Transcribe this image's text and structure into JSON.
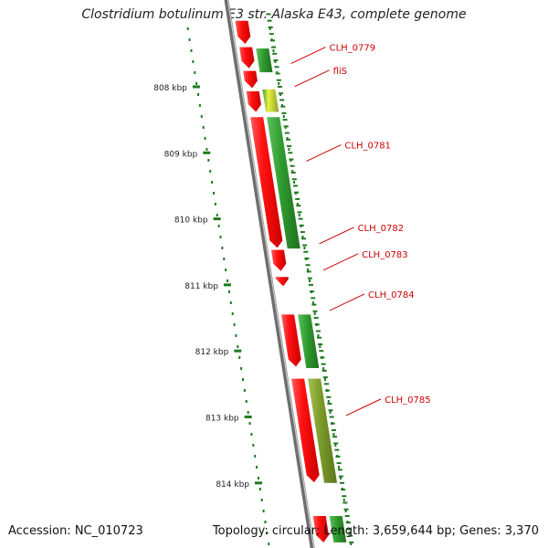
{
  "title": "Clostridium botulinum E3 str. Alaska E43, complete genome",
  "accession_text": "Accession: NC_010723",
  "stats_text": "Topology: circular; Length: 3,659,644 bp; Genes: 3,370",
  "colors": {
    "backbone": "#8c8c8c",
    "gene_forward": "#ff1a1a",
    "cds_green": "#2e9a2e",
    "cds_olive": "#7a9a2a",
    "tick": "#1e7a1e",
    "label": "#cc0000"
  },
  "scale": {
    "unit": "kbp",
    "ticks": [
      {
        "value": 808,
        "label": "808 kbp"
      },
      {
        "value": 809,
        "label": "809 kbp"
      },
      {
        "value": 810,
        "label": "810 kbp"
      },
      {
        "value": 811,
        "label": "811 kbp"
      },
      {
        "value": 812,
        "label": "812 kbp"
      },
      {
        "value": 813,
        "label": "813 kbp"
      },
      {
        "value": 814,
        "label": "814 kbp"
      }
    ]
  },
  "genes": [
    {
      "name": "",
      "start": 807.0,
      "end": 807.35,
      "color": "gene_forward",
      "track": "gene"
    },
    {
      "name": "CLH_0779",
      "start": 807.4,
      "end": 807.72,
      "color": "gene_forward",
      "track": "gene",
      "label_at": 807.62
    },
    {
      "name": "",
      "start": 807.42,
      "end": 807.78,
      "color": "cds_green",
      "track": "cds"
    },
    {
      "name": "",
      "start": 807.76,
      "end": 808.02,
      "color": "gene_forward",
      "track": "gene"
    },
    {
      "name": "fliS",
      "start": 808.07,
      "end": 808.38,
      "color": "gene_forward",
      "track": "gene",
      "label_at": 807.97
    },
    {
      "name": "",
      "start": 808.04,
      "end": 808.38,
      "color": "cds_yellow",
      "track": "cds"
    },
    {
      "name": "CLH_0781",
      "start": 808.46,
      "end": 810.44,
      "color": "gene_forward",
      "track": "gene",
      "label_at": 809.1
    },
    {
      "name": "",
      "start": 808.46,
      "end": 810.45,
      "color": "cds_green",
      "track": "cds"
    },
    {
      "name": "CLH_0782",
      "start": 810.47,
      "end": 810.79,
      "color": "gene_forward",
      "track": "gene",
      "label_at": 810.35
    },
    {
      "name": "CLH_0783",
      "start": 810.88,
      "end": 811.02,
      "color": "gene_forward",
      "track": "gene",
      "label_at": 810.75
    },
    {
      "name": "CLH_0784",
      "start": 811.45,
      "end": 812.24,
      "color": "gene_forward",
      "track": "gene",
      "label_at": 811.36
    },
    {
      "name": "",
      "start": 811.45,
      "end": 812.26,
      "color": "cds_green",
      "track": "cds"
    },
    {
      "name": "CLH_0785",
      "start": 812.42,
      "end": 813.99,
      "color": "gene_forward",
      "track": "gene",
      "label_at": 812.95
    },
    {
      "name": "",
      "start": 812.42,
      "end": 814.0,
      "color": "cds_olive",
      "track": "cds"
    },
    {
      "name": "",
      "start": 814.5,
      "end": 814.9,
      "color": "gene_forward",
      "track": "gene"
    },
    {
      "name": "",
      "start": 814.5,
      "end": 814.9,
      "color": "cds_green",
      "track": "cds"
    }
  ]
}
